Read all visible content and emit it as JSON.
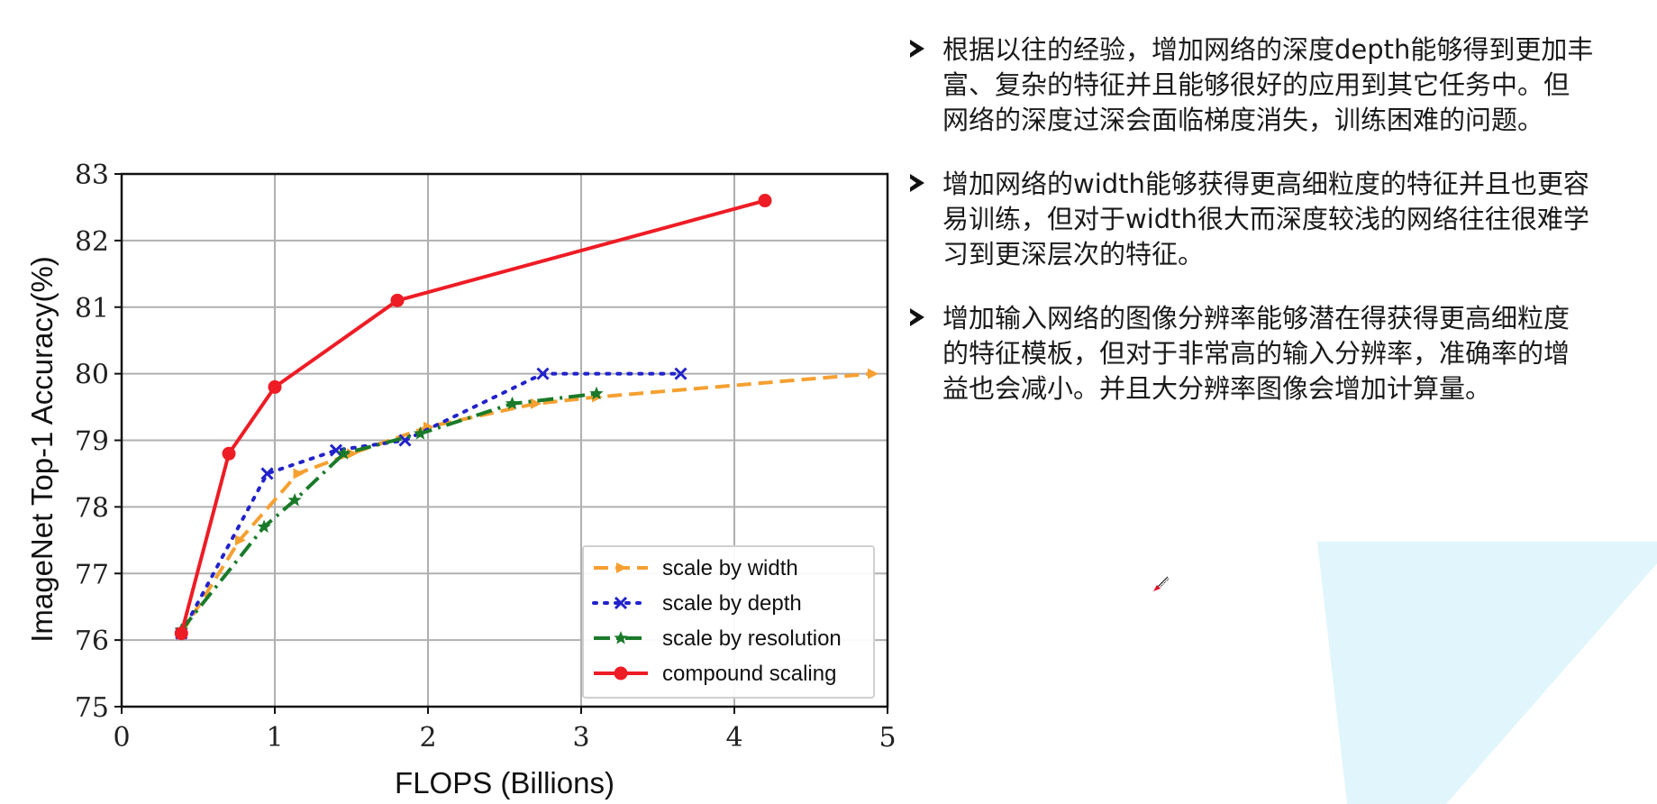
{
  "slide": {
    "bullets": [
      {
        "lines": [
          "根据以往的经验，增加网络的深度depth能够得到更加丰",
          "富、复杂的特征并且能够很好的应用到其它任务中。但",
          "网络的深度过深会面临梯度消失，训练困难的问题。"
        ]
      },
      {
        "lines": [
          "增加网络的width能够获得更高细粒度的特征并且也更容",
          "易训练，但对于width很大而深度较浅的网络往往很难学",
          "习到更深层次的特征。"
        ]
      },
      {
        "lines": [
          "增加输入网络的图像分辨率能够潜在得获得更高细粒度",
          "的特征模板，但对于非常高的输入分辨率，准确率的增",
          "益也会减小。并且大分辨率图像会增加计算量。"
        ]
      }
    ],
    "bullet_icon": "arrowhead-bullet-icon",
    "cursor_icon": "pen-cursor-icon",
    "decor_color": "#e0f5fc"
  },
  "chart_data": {
    "type": "line",
    "title": "",
    "xlabel": "FLOPS (Billions)",
    "ylabel": "ImageNet Top-1 Accuracy(%)",
    "xlim": [
      0,
      5
    ],
    "ylim": [
      75,
      83
    ],
    "xticks": [
      "0",
      "1",
      "2",
      "3",
      "4",
      "5"
    ],
    "yticks": [
      "75",
      "76",
      "77",
      "78",
      "79",
      "80",
      "81",
      "82",
      "83"
    ],
    "grid": true,
    "legend_position": "lower right",
    "series": [
      {
        "name": "scale by width",
        "color": "#f5a031",
        "style": "dashed",
        "marker": "triangle",
        "x": [
          0.39,
          0.77,
          1.15,
          1.5,
          2.0,
          2.7,
          3.1,
          4.9
        ],
        "y": [
          76.1,
          77.5,
          78.5,
          78.8,
          79.2,
          79.55,
          79.65,
          80.0
        ]
      },
      {
        "name": "scale by depth",
        "color": "#2222cc",
        "style": "dotted",
        "marker": "x",
        "x": [
          0.39,
          0.95,
          1.4,
          1.85,
          2.75,
          3.65
        ],
        "y": [
          76.1,
          78.5,
          78.85,
          79.0,
          80.0,
          80.0
        ]
      },
      {
        "name": "scale by resolution",
        "color": "#1a7a2a",
        "style": "dashdot",
        "marker": "star",
        "x": [
          0.39,
          0.93,
          1.13,
          1.45,
          1.95,
          2.55,
          3.1
        ],
        "y": [
          76.15,
          77.7,
          78.1,
          78.8,
          79.1,
          79.55,
          79.7
        ]
      },
      {
        "name": "compound scaling",
        "color": "#ee1c25",
        "style": "solid",
        "marker": "circle",
        "x": [
          0.39,
          0.7,
          1.0,
          1.8,
          4.2
        ],
        "y": [
          76.1,
          78.8,
          79.8,
          81.1,
          82.6
        ]
      }
    ]
  }
}
